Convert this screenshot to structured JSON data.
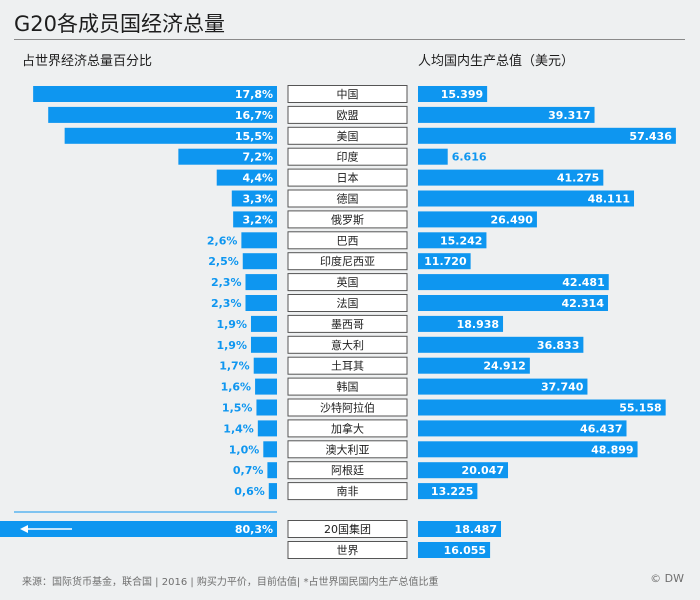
{
  "title": "G20各成员国经济总量",
  "left_subtitle": "占世界经济总量百分比",
  "right_subtitle": "人均国内生产总值（美元）",
  "source": "来源：国际货币基金，联合国 | 2016 | 购买力平价，目前估值| *占世界国民国内生产总值比重",
  "logo": "© DW",
  "colors": {
    "bar": "#0e96f0",
    "label_inside": "#ffffff",
    "label_outside": "#0e96f0",
    "box_border": "#555555",
    "box_fill": "#ffffff",
    "text": "#1d1d1d"
  },
  "chart_data": {
    "type": "bar",
    "categories": [
      "中国",
      "欧盟",
      "美国",
      "印度",
      "日本",
      "德国",
      "俄罗斯",
      "巴西",
      "印度尼西亚",
      "英国",
      "法国",
      "墨西哥",
      "意大利",
      "土耳其",
      "韩国",
      "沙特阿拉伯",
      "加拿大",
      "澳大利亚",
      "阿根廷",
      "南非"
    ],
    "share_world_pct": [
      17.8,
      16.7,
      15.5,
      7.2,
      4.4,
      3.3,
      3.2,
      2.6,
      2.5,
      2.3,
      2.3,
      1.9,
      1.9,
      1.7,
      1.6,
      1.5,
      1.4,
      1.0,
      0.7,
      0.6
    ],
    "share_labels": [
      "17,8%",
      "16,7%",
      "15,5%",
      "7,2%",
      "4,4%",
      "3,3%",
      "3,2%",
      "2,6%",
      "2,5%",
      "2,3%",
      "2,3%",
      "1,9%",
      "1,9%",
      "1,7%",
      "1,6%",
      "1,5%",
      "1,4%",
      "1,0%",
      "0,7%",
      "0,6%"
    ],
    "gdp_per_capita_usd": [
      15399,
      39317,
      57436,
      6616,
      41275,
      48111,
      26490,
      15242,
      11720,
      42481,
      42314,
      18938,
      36833,
      24912,
      37740,
      55158,
      46437,
      48899,
      20047,
      13225
    ],
    "gdp_labels": [
      "15.399",
      "39.317",
      "57.436",
      "6.616",
      "41.275",
      "48.111",
      "26.490",
      "15.242",
      "11.720",
      "42.481",
      "42.314",
      "18.938",
      "36.833",
      "24.912",
      "37.740",
      "55.158",
      "46.437",
      "48.899",
      "20.047",
      "13.225"
    ],
    "totals": [
      {
        "category": "20国集团",
        "share_world_pct": 80.3,
        "share_label": "80,3%",
        "gdp_per_capita_usd": 18487,
        "gdp_label": "18.487"
      },
      {
        "category": "世界",
        "gdp_per_capita_usd": 16055,
        "gdp_label": "16.055"
      }
    ]
  }
}
